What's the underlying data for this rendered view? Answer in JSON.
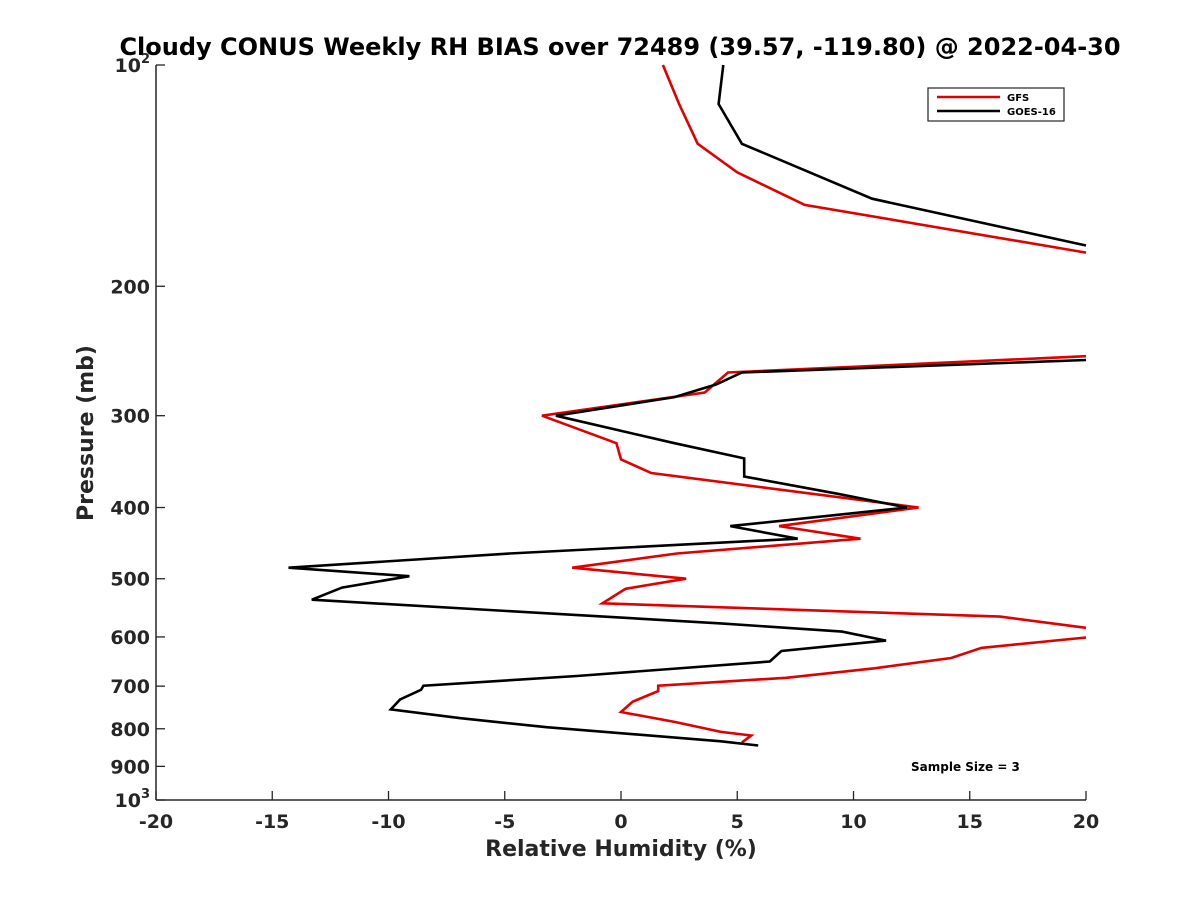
{
  "chart_data": {
    "type": "line",
    "title": "Cloudy CONUS Weekly RH BIAS over 72489 (39.57, -119.80) @ 2022-04-30",
    "xlabel": "Relative Humidity (%)",
    "ylabel": "Pressure (mb)",
    "xlim": [
      -20,
      20
    ],
    "ylim": [
      100,
      1000
    ],
    "y_scale": "log",
    "y_reversed": true,
    "grid": false,
    "legend_position": "top-right",
    "x_ticks": [
      "-20",
      "-15",
      "-10",
      "-5",
      "0",
      "5",
      "10",
      "15",
      "20"
    ],
    "y_ticks": [
      {
        "value": 100,
        "base": "10",
        "exp": "2"
      },
      {
        "value": 200,
        "label": "200"
      },
      {
        "value": 300,
        "label": "300"
      },
      {
        "value": 400,
        "label": "400"
      },
      {
        "value": 500,
        "label": "500"
      },
      {
        "value": 600,
        "label": "600"
      },
      {
        "value": 700,
        "label": "700"
      },
      {
        "value": 800,
        "label": "800"
      },
      {
        "value": 900,
        "label": "900"
      },
      {
        "value": 1000,
        "base": "10",
        "exp": "3"
      }
    ],
    "series": [
      {
        "name": "GFS",
        "color": "#e00000",
        "segments": [
          [
            [
              1.8,
              100
            ],
            [
              2.5,
              113
            ],
            [
              3.3,
              128
            ],
            [
              5.0,
              140
            ],
            [
              7.9,
              155
            ],
            [
              20,
              180
            ]
          ],
          [
            [
              20,
              249
            ],
            [
              4.6,
              262
            ],
            [
              3.6,
              279
            ],
            [
              -3.4,
              300
            ],
            [
              -0.2,
              327
            ],
            [
              0,
              344
            ],
            [
              1.3,
              359
            ],
            [
              12.8,
              400
            ],
            [
              6.8,
              424
            ],
            [
              10.3,
              441
            ],
            [
              2.4,
              462
            ],
            [
              -2.1,
              483
            ],
            [
              2.8,
              500
            ],
            [
              0.2,
              516
            ],
            [
              -0.8,
              540
            ],
            [
              16.3,
              563
            ],
            [
              20,
              583
            ]
          ],
          [
            [
              20,
              601
            ],
            [
              15.5,
              621
            ],
            [
              14.2,
              641
            ],
            [
              10.9,
              662
            ],
            [
              7.1,
              682
            ],
            [
              1.6,
              699
            ],
            [
              1.6,
              711
            ],
            [
              0.5,
              735
            ],
            [
              0,
              759
            ],
            [
              2.3,
              783
            ],
            [
              4.3,
              808
            ],
            [
              5.6,
              817
            ],
            [
              5.2,
              835
            ]
          ]
        ]
      },
      {
        "name": "GOES-16",
        "color": "#000000",
        "segments": [
          [
            [
              4.4,
              100
            ],
            [
              4.2,
              113
            ],
            [
              5.2,
              128
            ],
            [
              10.8,
              152
            ],
            [
              20,
              176
            ]
          ],
          [
            [
              20,
              252
            ],
            [
              5.2,
              262
            ],
            [
              4.1,
              272
            ],
            [
              2.3,
              283
            ],
            [
              -2.8,
              300
            ],
            [
              2.3,
              327
            ],
            [
              5.3,
              343
            ],
            [
              5.3,
              363
            ],
            [
              9.3,
              383
            ],
            [
              12.3,
              400
            ],
            [
              4.7,
              424
            ],
            [
              7.6,
              441
            ],
            [
              -4.8,
              462
            ],
            [
              -14.3,
              483
            ],
            [
              -9.1,
              496
            ],
            [
              -12,
              514
            ],
            [
              -13.3,
              534
            ],
            [
              4.3,
              575
            ],
            [
              9.5,
              590
            ],
            [
              11.4,
              607
            ],
            [
              6.9,
              627
            ],
            [
              6.4,
              648
            ],
            [
              -1.9,
              678
            ],
            [
              -8.5,
              699
            ],
            [
              -8.6,
              708
            ],
            [
              -9.5,
              730
            ],
            [
              -9.9,
              753
            ],
            [
              -6.9,
              774
            ],
            [
              -3.2,
              796
            ],
            [
              4.3,
              832
            ],
            [
              5.9,
              843
            ]
          ]
        ]
      }
    ],
    "annotation": "Sample Size = 3"
  }
}
